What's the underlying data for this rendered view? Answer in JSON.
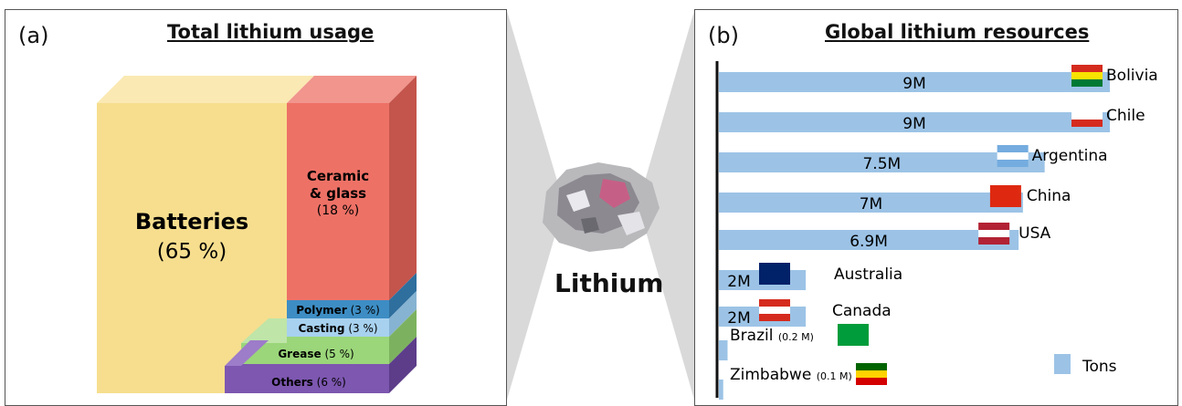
{
  "chart_data": [
    {
      "type": "treemap",
      "panel_letter": "(a)",
      "title": "Total lithium usage",
      "segments": [
        {
          "label_line1": "Batteries",
          "label_line2": "(65 %)",
          "value": 65,
          "color": "#f6de8e"
        },
        {
          "label_line1": "Ceramic",
          "label_line2": "& glass",
          "label_line3": "(18 %)",
          "value": 18,
          "color": "#ee7166"
        },
        {
          "label_line1": "Polymer",
          "label_line2": "(3 %)",
          "value": 3,
          "color": "#3d8dc4"
        },
        {
          "label_line1": "Casting",
          "label_line2": "(3 %)",
          "value": 3,
          "color": "#a7d1ef"
        },
        {
          "label_line1": "Grease",
          "label_line2": "(5 %)",
          "value": 5,
          "color": "#9bd67a"
        },
        {
          "label_line1": "Others",
          "label_line2": "(6 %)",
          "value": 6,
          "color": "#7d57b0"
        }
      ]
    },
    {
      "type": "bar",
      "orientation": "horizontal",
      "panel_letter": "(b)",
      "title": "Global lithium resources",
      "unit": "M",
      "legend": "Tons",
      "legend_position": "bottom-right",
      "bar_color": "#9cc3e6",
      "xlim": [
        0,
        9
      ],
      "categories": [
        "Bolivia",
        "Chile",
        "Argentina",
        "China",
        "USA",
        "Australia",
        "Canada",
        "Brazil",
        "Zimbabwe"
      ],
      "values": [
        9,
        9,
        7.5,
        7,
        6.9,
        2,
        2,
        0.2,
        0.1
      ],
      "value_labels": [
        "9M",
        "9M",
        "7.5M",
        "7M",
        "6.9M",
        "2M",
        "2M",
        "(0.2 M)",
        "(0.1 M)"
      ]
    }
  ],
  "center": {
    "label": "Lithium"
  }
}
